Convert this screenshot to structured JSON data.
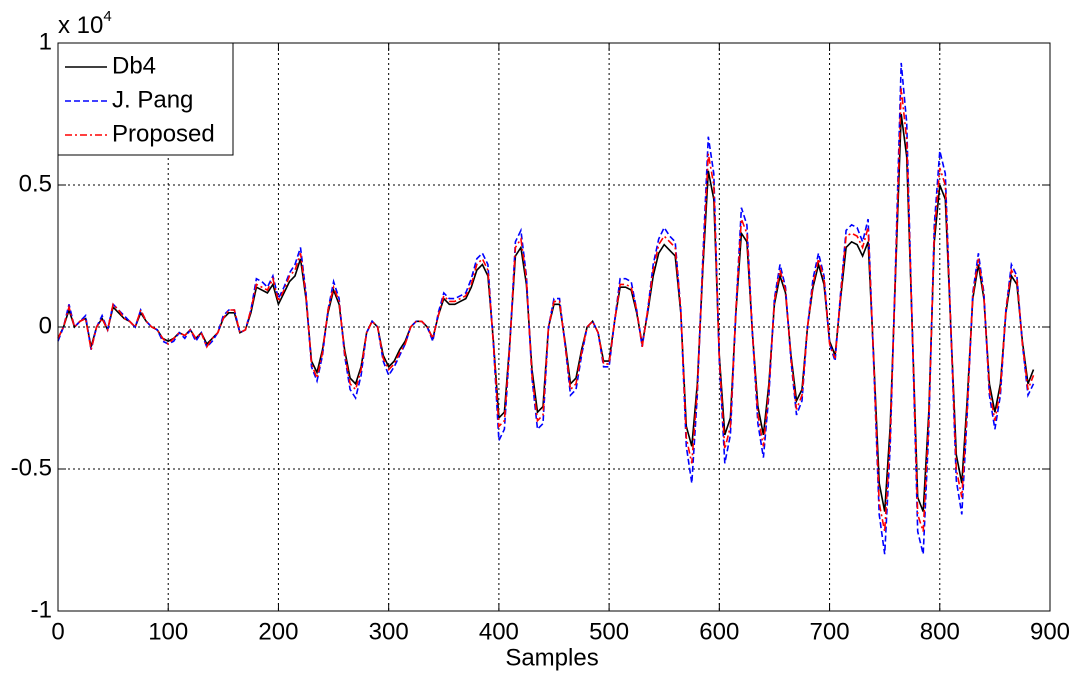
{
  "chart_data": {
    "type": "line",
    "xlabel": "Samples",
    "y_multiplier": {
      "base": "x 10",
      "exponent": "4"
    },
    "x": [
      0,
      5,
      10,
      15,
      20,
      25,
      30,
      35,
      40,
      45,
      50,
      55,
      60,
      65,
      70,
      75,
      80,
      85,
      90,
      95,
      100,
      105,
      110,
      115,
      120,
      125,
      130,
      135,
      140,
      145,
      150,
      155,
      160,
      165,
      170,
      175,
      180,
      185,
      190,
      195,
      200,
      205,
      210,
      215,
      220,
      225,
      230,
      235,
      240,
      245,
      250,
      255,
      260,
      265,
      270,
      275,
      280,
      285,
      290,
      295,
      300,
      305,
      310,
      315,
      320,
      325,
      330,
      335,
      340,
      345,
      350,
      355,
      360,
      365,
      370,
      375,
      380,
      385,
      390,
      395,
      400,
      405,
      410,
      415,
      420,
      425,
      430,
      435,
      440,
      445,
      450,
      455,
      460,
      465,
      470,
      475,
      480,
      485,
      490,
      495,
      500,
      505,
      510,
      515,
      520,
      525,
      530,
      535,
      540,
      545,
      550,
      555,
      560,
      565,
      570,
      575,
      580,
      585,
      590,
      595,
      600,
      605,
      610,
      615,
      620,
      625,
      630,
      635,
      640,
      645,
      650,
      655,
      660,
      665,
      670,
      675,
      680,
      685,
      690,
      695,
      700,
      705,
      710,
      715,
      720,
      725,
      730,
      735,
      740,
      745,
      750,
      755,
      760,
      765,
      770,
      775,
      780,
      785,
      790,
      795,
      800,
      805,
      810,
      815,
      820,
      825,
      830,
      835,
      840,
      845,
      850,
      855,
      860,
      865,
      870,
      875,
      880,
      885
    ],
    "series": [
      {
        "name": "Db4",
        "color": "#000000",
        "style": "solid",
        "values": [
          -0.04,
          0,
          0.06,
          0,
          0.02,
          0.03,
          -0.07,
          0,
          0.03,
          -0.01,
          0.07,
          0.05,
          0.03,
          0.02,
          0,
          0.05,
          0.02,
          0,
          -0.01,
          -0.04,
          -0.05,
          -0.04,
          -0.02,
          -0.03,
          -0.01,
          -0.04,
          -0.02,
          -0.06,
          -0.04,
          -0.02,
          0.03,
          0.05,
          0.05,
          -0.02,
          -0.01,
          0.05,
          0.14,
          0.13,
          0.12,
          0.15,
          0.08,
          0.12,
          0.16,
          0.18,
          0.24,
          0.1,
          -0.12,
          -0.16,
          -0.08,
          0.05,
          0.13,
          0.08,
          -0.08,
          -0.18,
          -0.2,
          -0.14,
          -0.02,
          0.02,
          0,
          -0.1,
          -0.14,
          -0.12,
          -0.08,
          -0.05,
          0,
          0.02,
          0.02,
          0,
          -0.04,
          0.04,
          0.1,
          0.08,
          0.08,
          0.09,
          0.1,
          0.14,
          0.2,
          0.22,
          0.18,
          -0.05,
          -0.32,
          -0.3,
          -0.05,
          0.25,
          0.28,
          0.15,
          -0.15,
          -0.3,
          -0.28,
          0,
          0.08,
          0.08,
          -0.05,
          -0.2,
          -0.18,
          -0.08,
          0,
          0.02,
          -0.02,
          -0.12,
          -0.12,
          0.02,
          0.14,
          0.14,
          0.13,
          0.05,
          -0.06,
          0.05,
          0.18,
          0.26,
          0.29,
          0.27,
          0.25,
          0.05,
          -0.35,
          -0.42,
          -0.2,
          0.2,
          0.55,
          0.45,
          -0.1,
          -0.38,
          -0.32,
          0.05,
          0.33,
          0.3,
          -0.02,
          -0.28,
          -0.38,
          -0.2,
          0.08,
          0.18,
          0.12,
          -0.1,
          -0.26,
          -0.22,
          0,
          0.14,
          0.22,
          0.15,
          -0.05,
          -0.1,
          0.1,
          0.28,
          0.3,
          0.29,
          0.25,
          0.3,
          -0.1,
          -0.55,
          -0.65,
          -0.35,
          0.2,
          0.75,
          0.6,
          0,
          -0.6,
          -0.65,
          -0.3,
          0.3,
          0.5,
          0.45,
          0,
          -0.45,
          -0.55,
          -0.25,
          0.1,
          0.22,
          0.1,
          -0.2,
          -0.3,
          -0.2,
          0.05,
          0.18,
          0.15,
          -0.05,
          -0.2,
          -0.15
        ]
      },
      {
        "name": "J. Pang",
        "color": "#0000ff",
        "style": "dashed",
        "values": [
          -0.05,
          0,
          0.08,
          0,
          0.02,
          0.04,
          -0.08,
          0,
          0.04,
          -0.01,
          0.08,
          0.06,
          0.04,
          0.02,
          0,
          0.06,
          0.02,
          0,
          -0.01,
          -0.05,
          -0.06,
          -0.05,
          -0.02,
          -0.04,
          -0.01,
          -0.05,
          -0.02,
          -0.07,
          -0.05,
          -0.02,
          0.04,
          0.06,
          0.06,
          -0.02,
          -0.01,
          0.06,
          0.17,
          0.16,
          0.14,
          0.18,
          0.1,
          0.14,
          0.19,
          0.22,
          0.28,
          0.12,
          -0.14,
          -0.19,
          -0.1,
          0.06,
          0.16,
          0.1,
          -0.1,
          -0.22,
          -0.25,
          -0.17,
          -0.02,
          0.02,
          0,
          -0.12,
          -0.17,
          -0.14,
          -0.1,
          -0.06,
          0,
          0.02,
          0.02,
          0,
          -0.05,
          0.05,
          0.12,
          0.1,
          0.1,
          0.11,
          0.12,
          0.17,
          0.24,
          0.26,
          0.22,
          -0.06,
          -0.4,
          -0.36,
          -0.06,
          0.3,
          0.34,
          0.18,
          -0.18,
          -0.36,
          -0.34,
          0,
          0.1,
          0.1,
          -0.06,
          -0.24,
          -0.22,
          -0.1,
          0,
          0.02,
          -0.02,
          -0.14,
          -0.14,
          0.02,
          0.17,
          0.17,
          0.16,
          0.06,
          -0.07,
          0.06,
          0.22,
          0.31,
          0.35,
          0.32,
          0.3,
          0.06,
          -0.42,
          -0.55,
          -0.24,
          0.24,
          0.67,
          0.54,
          -0.12,
          -0.48,
          -0.38,
          0.06,
          0.42,
          0.36,
          -0.02,
          -0.34,
          -0.46,
          -0.24,
          0.1,
          0.22,
          0.14,
          -0.12,
          -0.31,
          -0.26,
          0,
          0.17,
          0.26,
          0.18,
          -0.06,
          -0.12,
          0.12,
          0.34,
          0.36,
          0.35,
          0.3,
          0.38,
          -0.12,
          -0.66,
          -0.8,
          -0.42,
          0.24,
          0.93,
          0.72,
          0,
          -0.72,
          -0.8,
          -0.36,
          0.36,
          0.62,
          0.54,
          0,
          -0.54,
          -0.66,
          -0.3,
          0.12,
          0.26,
          0.12,
          -0.24,
          -0.36,
          -0.24,
          0.06,
          0.22,
          0.18,
          -0.06,
          -0.24,
          -0.2
        ]
      },
      {
        "name": "Proposed",
        "color": "#ff0000",
        "style": "dashdot",
        "values": [
          -0.04,
          0,
          0.07,
          0,
          0.02,
          0.03,
          -0.08,
          0,
          0.03,
          -0.01,
          0.08,
          0.06,
          0.03,
          0.02,
          0,
          0.06,
          0.02,
          0,
          -0.01,
          -0.04,
          -0.06,
          -0.04,
          -0.02,
          -0.03,
          -0.01,
          -0.04,
          -0.02,
          -0.07,
          -0.04,
          -0.02,
          0.03,
          0.06,
          0.06,
          -0.02,
          -0.01,
          0.06,
          0.15,
          0.14,
          0.13,
          0.17,
          0.09,
          0.13,
          0.18,
          0.2,
          0.26,
          0.11,
          -0.13,
          -0.18,
          -0.09,
          0.06,
          0.14,
          0.09,
          -0.09,
          -0.2,
          -0.22,
          -0.15,
          -0.02,
          0.02,
          0,
          -0.11,
          -0.15,
          -0.13,
          -0.09,
          -0.06,
          0,
          0.02,
          0.02,
          0,
          -0.04,
          0.04,
          0.11,
          0.09,
          0.09,
          0.1,
          0.11,
          0.15,
          0.22,
          0.24,
          0.2,
          -0.06,
          -0.35,
          -0.33,
          -0.06,
          0.28,
          0.31,
          0.17,
          -0.17,
          -0.33,
          -0.31,
          0,
          0.09,
          0.09,
          -0.06,
          -0.22,
          -0.2,
          -0.09,
          0,
          0.02,
          -0.02,
          -0.13,
          -0.13,
          0.02,
          0.15,
          0.15,
          0.14,
          0.06,
          -0.07,
          0.06,
          0.2,
          0.29,
          0.32,
          0.3,
          0.28,
          0.06,
          -0.39,
          -0.48,
          -0.22,
          0.22,
          0.61,
          0.5,
          -0.11,
          -0.43,
          -0.35,
          0.06,
          0.38,
          0.33,
          -0.02,
          -0.31,
          -0.42,
          -0.22,
          0.09,
          0.2,
          0.13,
          -0.11,
          -0.29,
          -0.24,
          0,
          0.15,
          0.24,
          0.17,
          -0.06,
          -0.11,
          0.11,
          0.32,
          0.33,
          0.32,
          0.28,
          0.35,
          -0.11,
          -0.62,
          -0.72,
          -0.39,
          0.22,
          0.84,
          0.66,
          0,
          -0.66,
          -0.72,
          -0.33,
          0.33,
          0.56,
          0.5,
          0,
          -0.5,
          -0.6,
          -0.28,
          0.11,
          0.24,
          0.11,
          -0.22,
          -0.33,
          -0.22,
          0.06,
          0.2,
          0.17,
          -0.06,
          -0.22,
          -0.17
        ]
      }
    ],
    "xlim": [
      0,
      900
    ],
    "xticks": [
      0,
      100,
      200,
      300,
      400,
      500,
      600,
      700,
      800,
      900
    ],
    "ylim": [
      -1,
      1
    ],
    "yticks": [
      -1,
      -0.5,
      0,
      0.5,
      1
    ],
    "grid": true,
    "legend": "upper left"
  }
}
